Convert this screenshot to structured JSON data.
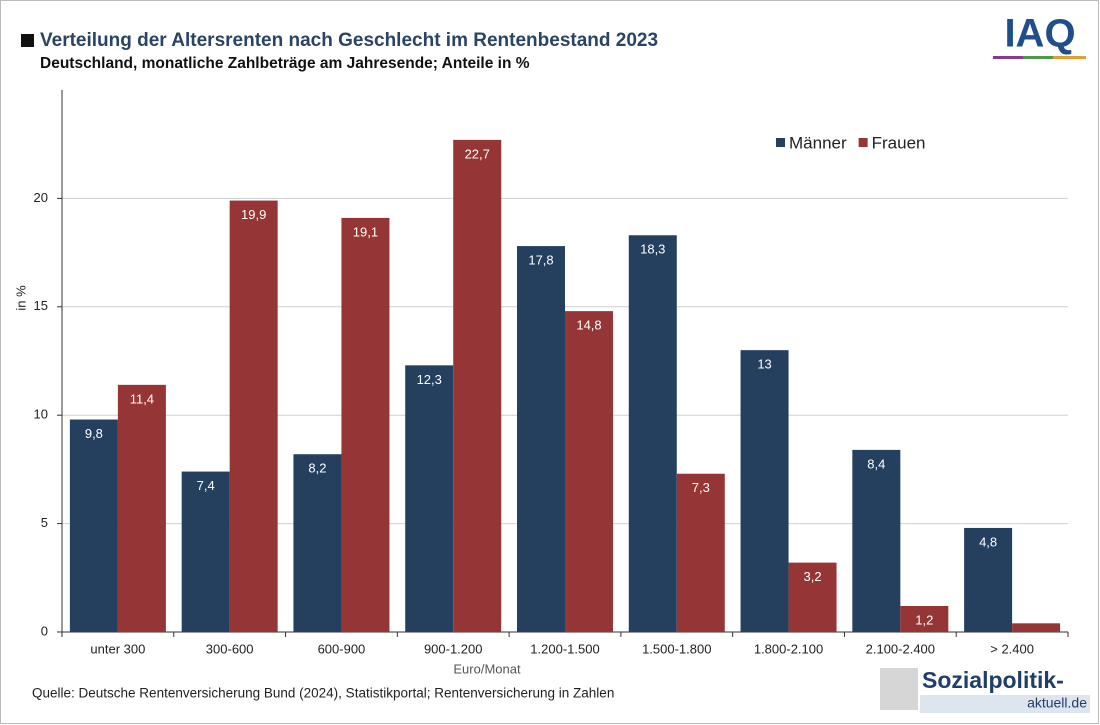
{
  "chart_data": {
    "type": "bar",
    "title": "Verteilung der Altersrenten nach Geschlecht im Rentenbestand 2023",
    "subtitle": "Deutschland, monatliche Zahlbeträge am Jahresende; Anteile in %",
    "y_label": "in %",
    "x_label": "Euro/Monat",
    "source": "Quelle: Deutsche Rentenversicherung Bund (2024), Statistikportal; Rentenversicherung in Zahlen",
    "logos": {
      "iaq": "IAQ",
      "sozialpolitik": "Sozialpolitik-",
      "sozialpolitik_domain": "aktuell.de"
    },
    "categories": [
      "unter 300",
      "300-600",
      "600-900",
      "900-1.200",
      "1.200-1.500",
      "1.500-1.800",
      "1.800-2.100",
      "2.100-2.400",
      "> 2.400"
    ],
    "series": [
      {
        "name": "Männer",
        "color": "#253f5f",
        "values": [
          9.8,
          7.4,
          8.2,
          12.3,
          17.8,
          18.3,
          13,
          8.4,
          4.8
        ],
        "value_labels": [
          "9,8",
          "7,4",
          "8,2",
          "12,3",
          "17,8",
          "18,3",
          "13",
          "8,4",
          "4,8"
        ]
      },
      {
        "name": "Frauen",
        "color": "#963535",
        "values": [
          11.4,
          19.9,
          19.1,
          22.7,
          14.8,
          7.3,
          3.2,
          1.2,
          0.4
        ],
        "value_labels": [
          "11,4",
          "19,9",
          "19,1",
          "22,7",
          "14,8",
          "7,3",
          "3,2",
          "1,2",
          null
        ]
      }
    ],
    "ylim": [
      0,
      25
    ],
    "yticks": [
      0,
      5,
      10,
      15,
      20
    ],
    "grid": true,
    "legend": "top-right"
  }
}
